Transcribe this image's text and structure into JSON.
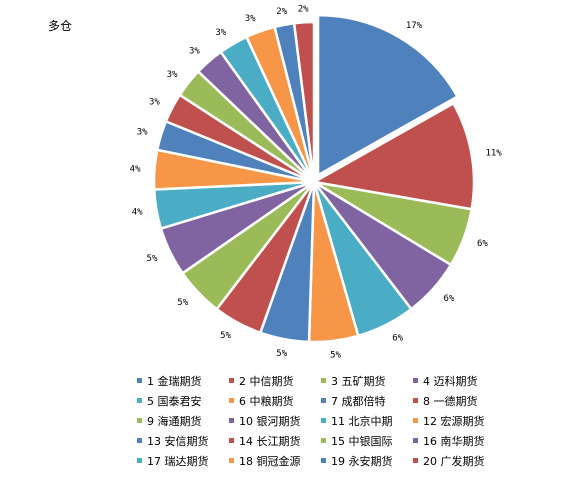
{
  "chart_data": {
    "type": "pie",
    "title": "多仓",
    "slices": [
      {
        "label": "1 金瑞期货",
        "value": 17,
        "color": "#4F81BD"
      },
      {
        "label": "2 中信期货",
        "value": 11,
        "color": "#C0504D"
      },
      {
        "label": "3 五矿期货",
        "value": 6,
        "color": "#9BBB59"
      },
      {
        "label": "4 迈科期货",
        "value": 6,
        "color": "#8064A2"
      },
      {
        "label": "5 国泰君安",
        "value": 6,
        "color": "#4BACC6"
      },
      {
        "label": "6 中粮期货",
        "value": 5,
        "color": "#F79646"
      },
      {
        "label": "7 成都倍特",
        "value": 5,
        "color": "#4F81BD"
      },
      {
        "label": "8 一德期货",
        "value": 5,
        "color": "#C0504D"
      },
      {
        "label": "9 海通期货",
        "value": 5,
        "color": "#9BBB59"
      },
      {
        "label": "10 银河期货",
        "value": 5,
        "color": "#8064A2"
      },
      {
        "label": "11 北京中期",
        "value": 4,
        "color": "#4BACC6"
      },
      {
        "label": "12 宏源期货",
        "value": 4,
        "color": "#F79646"
      },
      {
        "label": "13 安信期货",
        "value": 3,
        "color": "#4F81BD"
      },
      {
        "label": "14 长江期货",
        "value": 3,
        "color": "#C0504D"
      },
      {
        "label": "15 中银国际",
        "value": 3,
        "color": "#9BBB59"
      },
      {
        "label": "16 南华期货",
        "value": 3,
        "color": "#8064A2"
      },
      {
        "label": "17 瑞达期货",
        "value": 3,
        "color": "#4BACC6"
      },
      {
        "label": "18 铜冠金源",
        "value": 3,
        "color": "#F79646"
      },
      {
        "label": "19 永安期货",
        "value": 2,
        "color": "#4F81BD"
      },
      {
        "label": "20 广发期货",
        "value": 2,
        "color": "#C0504D"
      }
    ],
    "data_labels": [
      "17%",
      "11%",
      "6%",
      "6%",
      "6%",
      "5%",
      "5%",
      "5%",
      "5%",
      "5%",
      "4%",
      "4%",
      "3%",
      "3%",
      "3%",
      "3%",
      "3%",
      "3%",
      "2%",
      "2%"
    ],
    "legend_position": "bottom",
    "explode_first": true
  }
}
